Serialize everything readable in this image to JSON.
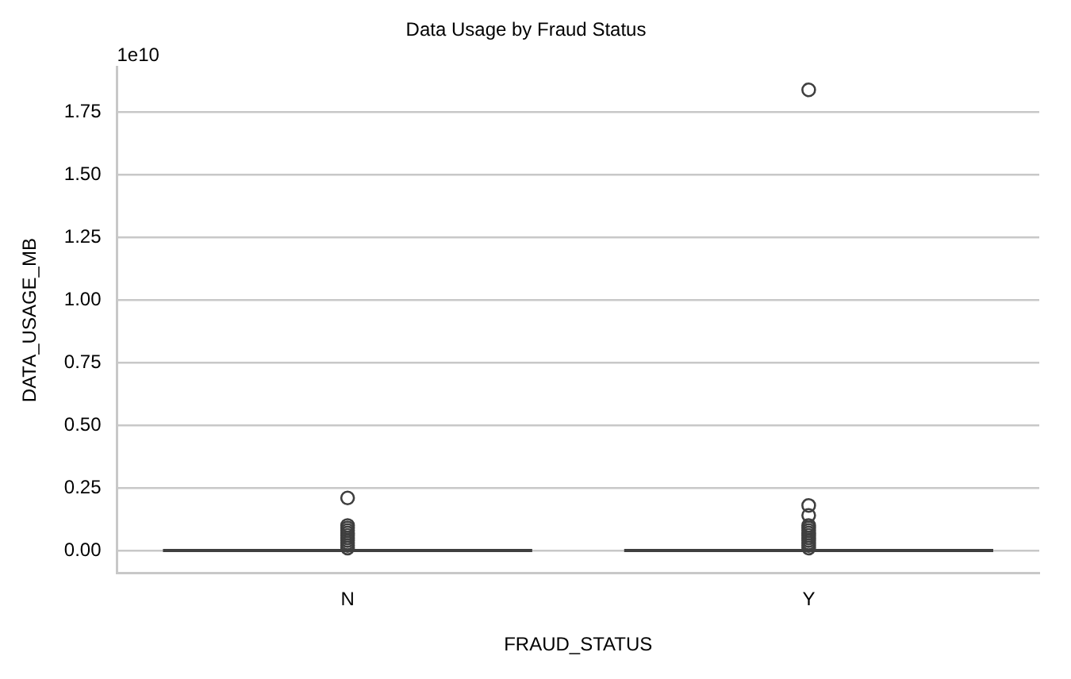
{
  "chart_data": {
    "type": "box",
    "title": "Data Usage by Fraud Status",
    "xlabel": "FRAUD_STATUS",
    "ylabel": "DATA_USAGE_MB",
    "annotations": [
      "1e10"
    ],
    "categories": [
      "N",
      "Y"
    ],
    "boxes": [
      {
        "low": 0,
        "q1": 0,
        "median": 0,
        "q3": 0,
        "high": 0,
        "outliers": [
          0.21,
          0.1,
          0.09,
          0.08,
          0.07,
          0.06,
          0.05,
          0.04,
          0.03,
          0.02,
          0.01
        ]
      },
      {
        "low": 0,
        "q1": 0,
        "median": 0,
        "q3": 0,
        "high": 0,
        "outliers": [
          1.84,
          0.18,
          0.14,
          0.1,
          0.09,
          0.08,
          0.07,
          0.06,
          0.05,
          0.04,
          0.03,
          0.02,
          0.01
        ]
      }
    ],
    "ylim": [
      -0.09,
      1.93
    ],
    "yticks": [
      {
        "value": 0,
        "label": "0.00"
      },
      {
        "value": 0.25,
        "label": "0.25"
      },
      {
        "value": 0.5,
        "label": "0.50"
      },
      {
        "value": 0.75,
        "label": "0.75"
      },
      {
        "value": 1,
        "label": "1.00"
      },
      {
        "value": 1.25,
        "label": "1.25"
      },
      {
        "value": 1.5,
        "label": "1.50"
      },
      {
        "value": 1.75,
        "label": "1.75"
      }
    ],
    "grid": "y",
    "marker": "circle"
  }
}
